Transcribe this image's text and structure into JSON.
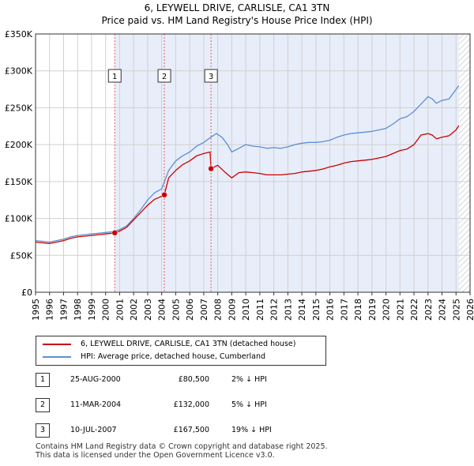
{
  "title_line1": "6, LEYWELL DRIVE, CARLISLE, CA1 3TN",
  "title_line2": "Price paid vs. HM Land Registry's House Price Index (HPI)",
  "legend": {
    "property_label": "6, LEYWELL DRIVE, CARLISLE, CA1 3TN (detached house)",
    "hpi_label": "HPI: Average price, detached house, Cumberland"
  },
  "colors": {
    "property_line": "#cc0000",
    "hpi_line": "#5b8fd1",
    "shaded_band": "#e8edfa",
    "hatch": "#c8c8c8",
    "marker_line": "#e06060"
  },
  "sales": [
    {
      "num": "1",
      "date": "25-AUG-2000",
      "price": "£80,500",
      "hpi": "2% ↓ HPI"
    },
    {
      "num": "2",
      "date": "11-MAR-2004",
      "price": "£132,000",
      "hpi": "5% ↓ HPI"
    },
    {
      "num": "3",
      "date": "10-JUL-2007",
      "price": "£167,500",
      "hpi": "19% ↓ HPI"
    }
  ],
  "footer_line1": "Contains HM Land Registry data © Crown copyright and database right 2025.",
  "footer_line2": "This data is licensed under the Open Government Licence v3.0.",
  "chart_data": {
    "type": "line",
    "title": "6, LEYWELL DRIVE, CARLISLE, CA1 3TN",
    "subtitle": "Price paid vs. HM Land Registry's House Price Index (HPI)",
    "xlim": [
      1995,
      2026
    ],
    "ylim": [
      0,
      350000
    ],
    "x_ticks": [
      "1995",
      "1996",
      "1997",
      "1998",
      "1999",
      "2000",
      "2001",
      "2002",
      "2003",
      "2004",
      "2005",
      "2006",
      "2007",
      "2008",
      "2009",
      "2010",
      "2011",
      "2012",
      "2013",
      "2014",
      "2015",
      "2016",
      "2017",
      "2018",
      "2019",
      "2020",
      "2021",
      "2022",
      "2023",
      "2024",
      "2025",
      "2026"
    ],
    "y_ticks": [
      {
        "value": 0,
        "label": "£0"
      },
      {
        "value": 50000,
        "label": "£50K"
      },
      {
        "value": 100000,
        "label": "£100K"
      },
      {
        "value": 150000,
        "label": "£150K"
      },
      {
        "value": 200000,
        "label": "£200K"
      },
      {
        "value": 250000,
        "label": "£250K"
      },
      {
        "value": 300000,
        "label": "£300K"
      },
      {
        "value": 350000,
        "label": "£350K"
      }
    ],
    "grid": true,
    "shaded_band": [
      2000.65,
      2025.2
    ],
    "hatched_region_from": 2025.2,
    "sale_markers": [
      {
        "label": "1",
        "x": 2000.65,
        "y": 80500
      },
      {
        "label": "2",
        "x": 2004.19,
        "y": 132000
      },
      {
        "label": "3",
        "x": 2007.52,
        "y": 167500
      }
    ],
    "series": [
      {
        "name": "HPI: Average price, detached house, Cumberland",
        "color": "#5b8fd1",
        "x": [
          1995.0,
          1995.5,
          1996.0,
          1996.5,
          1997.0,
          1997.5,
          1998.0,
          1998.5,
          1999.0,
          1999.5,
          2000.0,
          2000.5,
          2001.0,
          2001.5,
          2002.0,
          2002.5,
          2003.0,
          2003.5,
          2004.0,
          2004.5,
          2005.0,
          2005.5,
          2006.0,
          2006.5,
          2007.0,
          2007.5,
          2007.9,
          2008.3,
          2008.7,
          2009.0,
          2009.5,
          2010.0,
          2010.5,
          2011.0,
          2011.5,
          2012.0,
          2012.5,
          2013.0,
          2013.5,
          2014.0,
          2014.5,
          2015.0,
          2015.5,
          2016.0,
          2016.5,
          2017.0,
          2017.5,
          2018.0,
          2018.5,
          2019.0,
          2019.5,
          2020.0,
          2020.5,
          2021.0,
          2021.5,
          2022.0,
          2022.5,
          2023.0,
          2023.3,
          2023.6,
          2024.0,
          2024.5,
          2025.0,
          2025.2
        ],
        "y": [
          70000,
          69000,
          68000,
          70000,
          72000,
          75000,
          77000,
          78000,
          79000,
          80000,
          81000,
          82000,
          85000,
          90000,
          100000,
          112000,
          125000,
          135000,
          140000,
          165000,
          178000,
          185000,
          190000,
          198000,
          203000,
          210000,
          215000,
          210000,
          200000,
          190000,
          195000,
          200000,
          198000,
          197000,
          195000,
          196000,
          195000,
          197000,
          200000,
          202000,
          203000,
          203000,
          204000,
          206000,
          210000,
          213000,
          215000,
          216000,
          217000,
          218000,
          220000,
          222000,
          228000,
          235000,
          238000,
          245000,
          255000,
          265000,
          262000,
          256000,
          260000,
          262000,
          275000,
          280000
        ]
      },
      {
        "name": "6, LEYWELL DRIVE, CARLISLE, CA1 3TN (detached house)",
        "color": "#cc0000",
        "x": [
          1995.0,
          1995.5,
          1996.0,
          1996.5,
          1997.0,
          1997.5,
          1998.0,
          1998.5,
          1999.0,
          1999.5,
          2000.0,
          2000.65,
          2001.0,
          2001.5,
          2002.0,
          2002.5,
          2003.0,
          2003.5,
          2004.0,
          2004.19,
          2004.5,
          2005.0,
          2005.5,
          2006.0,
          2006.5,
          2007.0,
          2007.45,
          2007.52,
          2008.0,
          2008.5,
          2009.0,
          2009.5,
          2010.0,
          2010.5,
          2011.0,
          2011.5,
          2012.0,
          2012.5,
          2013.0,
          2013.5,
          2014.0,
          2014.5,
          2015.0,
          2015.5,
          2016.0,
          2016.5,
          2017.0,
          2017.5,
          2018.0,
          2018.5,
          2019.0,
          2019.5,
          2020.0,
          2020.5,
          2021.0,
          2021.5,
          2022.0,
          2022.5,
          2023.0,
          2023.3,
          2023.6,
          2024.0,
          2024.5,
          2025.0,
          2025.2
        ],
        "y": [
          68000,
          67000,
          66000,
          68000,
          70000,
          73000,
          75000,
          76000,
          77000,
          78000,
          79000,
          80500,
          83000,
          88000,
          98000,
          108000,
          118000,
          126000,
          130000,
          132000,
          155000,
          165000,
          173000,
          178000,
          185000,
          188000,
          190000,
          167500,
          172000,
          163000,
          155000,
          162000,
          163000,
          162000,
          161000,
          159000,
          159000,
          159000,
          160000,
          161000,
          163000,
          164000,
          165000,
          167000,
          170000,
          172000,
          175000,
          177000,
          178000,
          179000,
          180000,
          182000,
          184000,
          188000,
          192000,
          194000,
          200000,
          213000,
          215000,
          213000,
          208000,
          210000,
          212000,
          220000,
          226000
        ]
      }
    ]
  }
}
